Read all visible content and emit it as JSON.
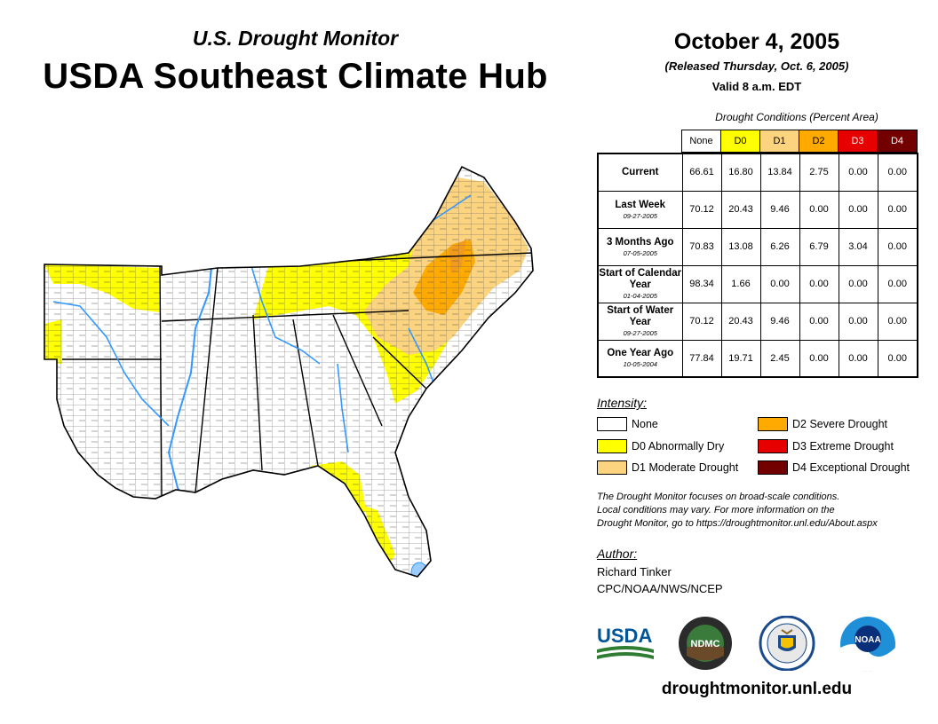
{
  "header": {
    "subtitle": "U.S. Drought Monitor",
    "title": "USDA Southeast Climate Hub",
    "date": "October 4, 2005",
    "released": "(Released Thursday, Oct. 6, 2005)",
    "valid": "Valid 8 a.m. EDT"
  },
  "table": {
    "caption": "Drought Conditions (Percent Area)",
    "columns": [
      {
        "label": "None",
        "color": "#ffffff",
        "text_color": "#000000"
      },
      {
        "label": "D0",
        "color": "#ffff00",
        "text_color": "#000000"
      },
      {
        "label": "D1",
        "color": "#fcd37f",
        "text_color": "#000000"
      },
      {
        "label": "D2",
        "color": "#ffaa00",
        "text_color": "#000000"
      },
      {
        "label": "D3",
        "color": "#e60000",
        "text_color": "#ffffff"
      },
      {
        "label": "D4",
        "color": "#730000",
        "text_color": "#ffffff"
      }
    ],
    "rows": [
      {
        "label": "Current",
        "sub": "",
        "values": [
          "66.61",
          "16.80",
          "13.84",
          "2.75",
          "0.00",
          "0.00"
        ]
      },
      {
        "label": "Last Week",
        "sub": "09-27-2005",
        "values": [
          "70.12",
          "20.43",
          "9.46",
          "0.00",
          "0.00",
          "0.00"
        ]
      },
      {
        "label": "3 Months Ago",
        "sub": "07-05-2005",
        "values": [
          "70.83",
          "13.08",
          "6.26",
          "6.79",
          "3.04",
          "0.00"
        ]
      },
      {
        "label": "Start of Calendar Year",
        "sub": "01-04-2005",
        "values": [
          "98.34",
          "1.66",
          "0.00",
          "0.00",
          "0.00",
          "0.00"
        ]
      },
      {
        "label": "Start of Water Year",
        "sub": "09-27-2005",
        "values": [
          "70.12",
          "20.43",
          "9.46",
          "0.00",
          "0.00",
          "0.00"
        ]
      },
      {
        "label": "One Year Ago",
        "sub": "10-05-2004",
        "values": [
          "77.84",
          "19.71",
          "2.45",
          "0.00",
          "0.00",
          "0.00"
        ]
      }
    ]
  },
  "legend": {
    "title": "Intensity:",
    "items": [
      {
        "label": "None",
        "color": "#ffffff"
      },
      {
        "label": "D0 Abnormally Dry",
        "color": "#ffff00"
      },
      {
        "label": "D1 Moderate Drought",
        "color": "#fcd37f"
      },
      {
        "label": "D2 Severe Drought",
        "color": "#ffaa00"
      },
      {
        "label": "D3 Extreme Drought",
        "color": "#e60000"
      },
      {
        "label": "D4 Exceptional Drought",
        "color": "#730000"
      }
    ]
  },
  "note": {
    "line1": "The Drought Monitor focuses on broad-scale conditions.",
    "line2": "Local conditions may vary. For more information on the",
    "line3": "Drought Monitor, go to https://droughtmonitor.unl.edu/About.aspx"
  },
  "author": {
    "title": "Author:",
    "name": "Richard Tinker",
    "org": "CPC/NOAA/NWS/NCEP"
  },
  "logos": {
    "usda": "USDA",
    "ndmc": "NDMC",
    "noaa": "NOAA"
  },
  "footer": {
    "url": "droughtmonitor.unl.edu"
  },
  "map": {
    "colors": {
      "none": "#ffffff",
      "d0": "#ffff00",
      "d1": "#fcd37f",
      "d2": "#ffaa00",
      "water": "#3399ff",
      "lake": "#99ccff"
    }
  }
}
